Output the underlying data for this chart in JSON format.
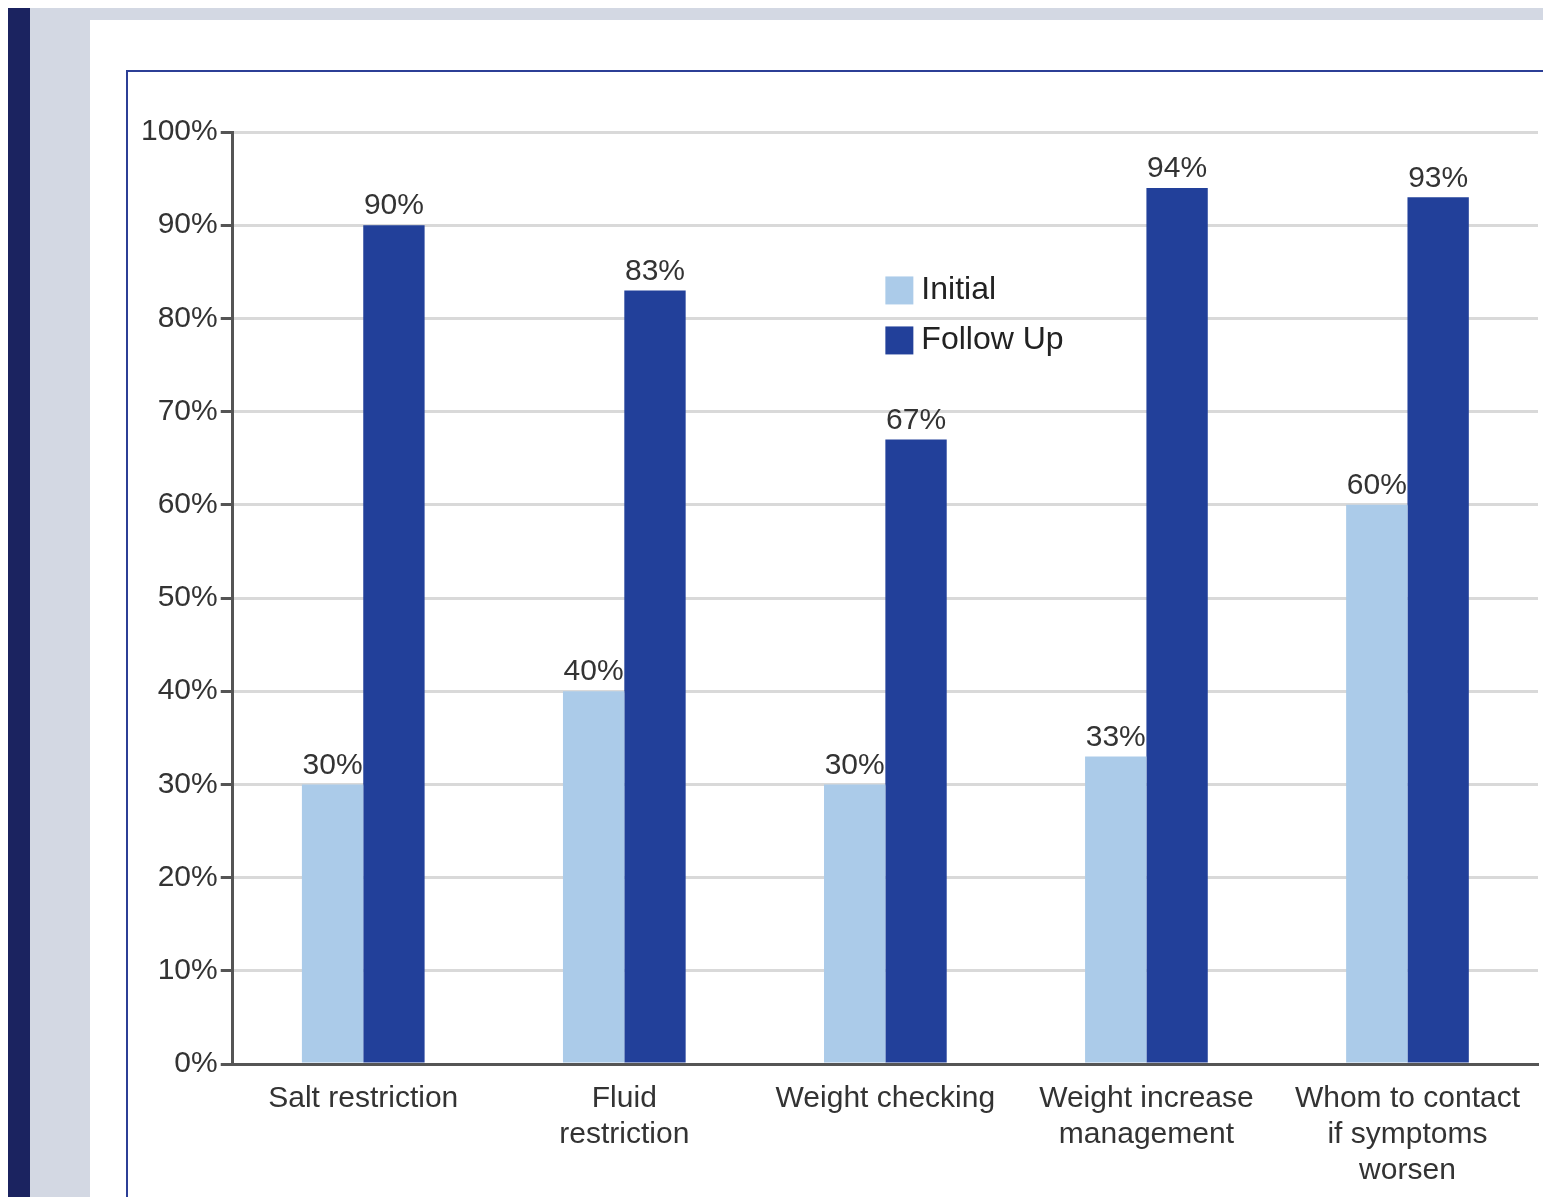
{
  "chart_data": {
    "type": "bar",
    "categories": [
      "Salt restriction",
      "Fluid restriction",
      "Weight checking",
      "Weight increase management",
      "Whom to contact if symptoms worsen"
    ],
    "series": [
      {
        "name": "Initial",
        "color": "#abcbe9",
        "values": [
          30,
          40,
          30,
          33,
          60
        ],
        "value_labels": [
          "30%",
          "40%",
          "30%",
          "33%",
          "60%"
        ]
      },
      {
        "name": "Follow Up",
        "color": "#22409a",
        "values": [
          90,
          83,
          67,
          94,
          93
        ],
        "value_labels": [
          "90%",
          "83%",
          "67%",
          "94%",
          "93%"
        ]
      }
    ],
    "ylim": [
      0,
      100
    ],
    "yticks": [
      {
        "value": 0,
        "label": "0%"
      },
      {
        "value": 10,
        "label": "10%"
      },
      {
        "value": 20,
        "label": "20%"
      },
      {
        "value": 30,
        "label": "30%"
      },
      {
        "value": 40,
        "label": "40%"
      },
      {
        "value": 50,
        "label": "50%"
      },
      {
        "value": 60,
        "label": "60%"
      },
      {
        "value": 70,
        "label": "70%"
      },
      {
        "value": 80,
        "label": "80%"
      },
      {
        "value": 90,
        "label": "90%"
      },
      {
        "value": 100,
        "label": "100%"
      }
    ],
    "grid": "y",
    "legend": "top"
  }
}
